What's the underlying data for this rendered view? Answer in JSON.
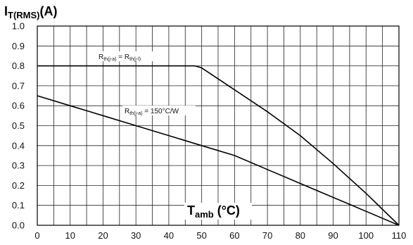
{
  "chart_data": {
    "type": "line",
    "ylabel": {
      "main": "I",
      "sub": "T(RMS)",
      "rest": "(A)"
    },
    "xlabel": {
      "main": "T",
      "sub": "amb",
      "rest": " (°C)"
    },
    "xlim": [
      0,
      110
    ],
    "ylim": [
      0,
      1.0
    ],
    "x_ticks": [
      "0",
      "10",
      "20",
      "30",
      "40",
      "50",
      "60",
      "70",
      "80",
      "90",
      "100",
      "110"
    ],
    "y_ticks": [
      "0.0",
      "0.1",
      "0.2",
      "0.3",
      "0.4",
      "0.5",
      "0.6",
      "0.7",
      "0.8",
      "0.9",
      "1.0"
    ],
    "grid": {
      "x_minor_step": 5,
      "y_step": 0.1
    },
    "series": [
      {
        "name": "Rth(j-a) = Rth(j-l)",
        "label": {
          "r1": "R",
          "s1": "th(j-a)",
          "mid": " = R",
          "s2": "th(j-l)"
        },
        "x": [
          0,
          48,
          50,
          60,
          70,
          80,
          90,
          100,
          110
        ],
        "y": [
          0.8,
          0.8,
          0.79,
          0.68,
          0.57,
          0.45,
          0.31,
          0.16,
          0.0
        ]
      },
      {
        "name": "Rth(j-a) = 150°C/W",
        "label": {
          "r1": "R",
          "s1": "th(j-a)",
          "mid": " = 150°C/W",
          "s2": ""
        },
        "x": [
          0,
          10,
          20,
          30,
          40,
          50,
          60,
          70,
          80,
          90,
          100,
          110
        ],
        "y": [
          0.65,
          0.6,
          0.55,
          0.5,
          0.45,
          0.4,
          0.35,
          0.28,
          0.21,
          0.14,
          0.07,
          0.0
        ]
      }
    ]
  }
}
